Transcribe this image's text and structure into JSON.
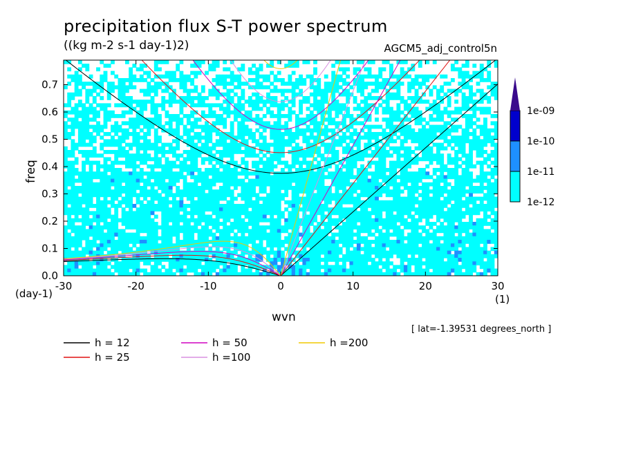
{
  "chart_data": {
    "type": "heatmap",
    "title": "precipitation flux S-T power spectrum",
    "units": "((kg m-2 s-1 day-1)2)",
    "run_name": "AGCM5_adj_control5n",
    "xlabel": "wvn",
    "ylabel": "freq",
    "x_unit": "(1)",
    "y_unit": "(day-1)",
    "xlim": [
      -30,
      30
    ],
    "ylim": [
      0,
      0.79
    ],
    "x_ticks": [
      -30,
      -20,
      -10,
      0,
      10,
      20,
      30
    ],
    "y_ticks": [
      0.0,
      0.1,
      0.2,
      0.3,
      0.4,
      0.5,
      0.6,
      0.7
    ],
    "x_tick_labels": [
      "-30",
      "-20",
      "-10",
      "0",
      "10",
      "20",
      "30"
    ],
    "y_tick_labels": [
      "0.0",
      "0.1",
      "0.2",
      "0.3",
      "0.4",
      "0.5",
      "0.6",
      "0.7"
    ],
    "colorbar": {
      "levels": [
        "1e-12",
        "1e-11",
        "1e-10",
        "1e-09"
      ],
      "colors": [
        "#00ffff",
        "#1e90ff",
        "#0000cd",
        "#3a0a8c"
      ]
    },
    "dispersion_curves": [
      {
        "h": 12,
        "label": "h = 12",
        "color": "#000000"
      },
      {
        "h": 25,
        "label": "h = 25",
        "color": "#e01010"
      },
      {
        "h": 50,
        "label": "h = 50",
        "color": "#d000c0"
      },
      {
        "h": 100,
        "label": "h =100",
        "color": "#d890e0"
      },
      {
        "h": 200,
        "label": "h =200",
        "color": "#f0c800"
      }
    ],
    "annotation": "[ lat=-1.39531 degrees_north ]"
  }
}
